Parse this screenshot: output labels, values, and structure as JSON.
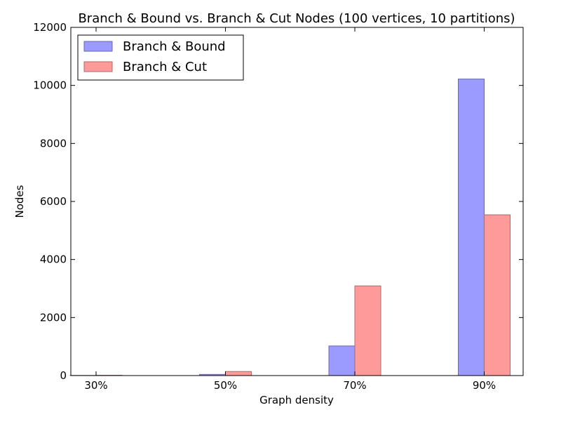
{
  "chart_data": {
    "type": "bar",
    "title": "Branch & Bound vs. Branch & Cut Nodes (100 vertices, 10 partitions)",
    "xlabel": "Graph density",
    "ylabel": "Nodes",
    "categories": [
      "30%",
      "50%",
      "70%",
      "90%"
    ],
    "ylim": [
      0,
      12000
    ],
    "yticks": [
      0,
      2000,
      4000,
      6000,
      8000,
      10000,
      12000
    ],
    "grid": false,
    "legend": "top-left",
    "series": [
      {
        "name": "Branch & Bound",
        "color": "#9a9aff",
        "edge": "#6a6aa8",
        "values": [
          5,
          40,
          1020,
          10220
        ]
      },
      {
        "name": "Branch & Cut",
        "color": "#ff9a9a",
        "edge": "#a86a6a",
        "values": [
          10,
          140,
          3090,
          5540
        ]
      }
    ]
  }
}
